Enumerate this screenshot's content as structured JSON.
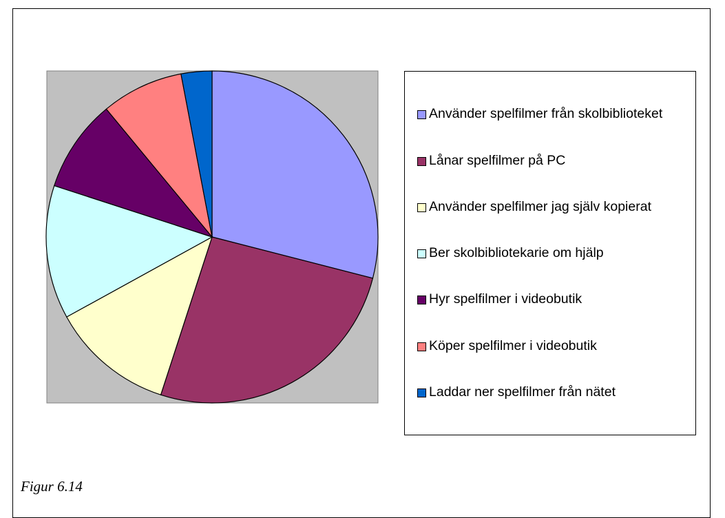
{
  "chart_data": {
    "type": "pie",
    "categories": [
      "Använder spelfilmer från skolbiblioteket",
      "Lånar spelfilmer på PC",
      "Använder spelfilmer jag själv kopierat",
      "Ber skolbibliotekarie om hjälp",
      "Hyr spelfilmer i videobutik",
      "Köper spelfilmer i videobutik",
      "Laddar ner spelfilmer från nätet"
    ],
    "values": [
      29,
      26,
      12,
      13,
      9,
      8,
      3
    ],
    "colors": [
      "#9999ff",
      "#993366",
      "#ffffcc",
      "#ccffff",
      "#660066",
      "#ff8080",
      "#0066cc"
    ],
    "legend": "right"
  },
  "caption": "Figur 6.14"
}
